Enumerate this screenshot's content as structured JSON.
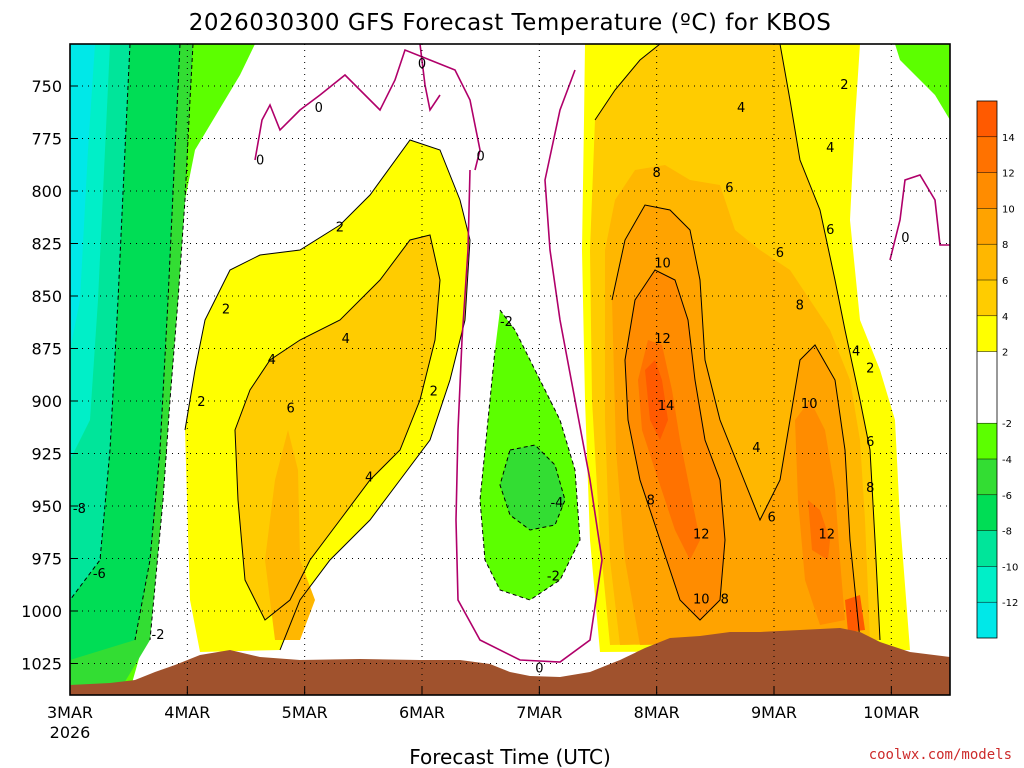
{
  "chart_data": {
    "type": "heatmap",
    "title": "2026030300 GFS Forecast Temperature (ºC) for KBOS",
    "xlabel": "Forecast Time (UTC)",
    "ylabel": "",
    "x_ticks": [
      "3MAR",
      "4MAR",
      "5MAR",
      "6MAR",
      "7MAR",
      "8MAR",
      "9MAR",
      "10MAR"
    ],
    "x_start_year": "2026",
    "y_ticks": [
      "750",
      "775",
      "800",
      "825",
      "850",
      "875",
      "900",
      "925",
      "950",
      "975",
      "1000",
      "1025"
    ],
    "y_units": "hPa",
    "ylim": [
      1040,
      730
    ],
    "xlim_days": [
      0,
      7.5
    ],
    "colorbar": {
      "labels": [
        "14",
        "12",
        "10",
        "8",
        "6",
        "4",
        "2",
        "-2",
        "-4",
        "-6",
        "-8",
        "-10",
        "-12"
      ],
      "bands": [
        {
          "range": [
            14,
            16
          ],
          "color": "#ff5a00"
        },
        {
          "range": [
            12,
            14
          ],
          "color": "#ff7200"
        },
        {
          "range": [
            10,
            12
          ],
          "color": "#ff8c00"
        },
        {
          "range": [
            8,
            10
          ],
          "color": "#ffa300"
        },
        {
          "range": [
            6,
            8
          ],
          "color": "#ffb700"
        },
        {
          "range": [
            4,
            6
          ],
          "color": "#ffcc00"
        },
        {
          "range": [
            2,
            4
          ],
          "color": "#ffff00"
        },
        {
          "range": [
            -2,
            2
          ],
          "color": "#ffffff"
        },
        {
          "range": [
            -4,
            -2
          ],
          "color": "#5cff00"
        },
        {
          "range": [
            -6,
            -4
          ],
          "color": "#33dd33"
        },
        {
          "range": [
            -8,
            -6
          ],
          "color": "#00dd55"
        },
        {
          "range": [
            -10,
            -8
          ],
          "color": "#00e59a"
        },
        {
          "range": [
            -12,
            -10
          ],
          "color": "#00efc8"
        },
        {
          "range": [
            -14,
            -12
          ],
          "color": "#00e8e8"
        }
      ]
    },
    "contour_labels": [
      {
        "text": "-8",
        "day": 0.08,
        "p": 951
      },
      {
        "text": "-6",
        "day": 0.25,
        "p": 982
      },
      {
        "text": "-2",
        "day": 0.75,
        "p": 1011
      },
      {
        "text": "2",
        "day": 1.12,
        "p": 900
      },
      {
        "text": "2",
        "day": 1.33,
        "p": 856
      },
      {
        "text": "4",
        "day": 1.72,
        "p": 880
      },
      {
        "text": "6",
        "day": 1.88,
        "p": 903
      },
      {
        "text": "2",
        "day": 2.3,
        "p": 817
      },
      {
        "text": "4",
        "day": 2.35,
        "p": 870
      },
      {
        "text": "4",
        "day": 2.55,
        "p": 936
      },
      {
        "text": "2",
        "day": 3.1,
        "p": 895
      },
      {
        "text": "0",
        "day": 1.62,
        "p": 785
      },
      {
        "text": "0",
        "day": 2.12,
        "p": 760
      },
      {
        "text": "0",
        "day": 3.0,
        "p": 739
      },
      {
        "text": "0",
        "day": 3.5,
        "p": 783
      },
      {
        "text": "-2",
        "day": 3.72,
        "p": 862
      },
      {
        "text": "-4",
        "day": 4.15,
        "p": 948
      },
      {
        "text": "-2",
        "day": 4.12,
        "p": 983
      },
      {
        "text": "0",
        "day": 4.0,
        "p": 1027
      },
      {
        "text": "8",
        "day": 5.0,
        "p": 791
      },
      {
        "text": "10",
        "day": 5.05,
        "p": 834
      },
      {
        "text": "12",
        "day": 5.05,
        "p": 870
      },
      {
        "text": "14",
        "day": 5.08,
        "p": 902
      },
      {
        "text": "8",
        "day": 4.95,
        "p": 947
      },
      {
        "text": "12",
        "day": 5.38,
        "p": 963
      },
      {
        "text": "10",
        "day": 5.38,
        "p": 994
      },
      {
        "text": "8",
        "day": 5.58,
        "p": 994
      },
      {
        "text": "6",
        "day": 5.62,
        "p": 798
      },
      {
        "text": "4",
        "day": 5.72,
        "p": 760
      },
      {
        "text": "6",
        "day": 6.05,
        "p": 829
      },
      {
        "text": "8",
        "day": 6.22,
        "p": 854
      },
      {
        "text": "4",
        "day": 5.85,
        "p": 922
      },
      {
        "text": "6",
        "day": 5.98,
        "p": 955
      },
      {
        "text": "10",
        "day": 6.3,
        "p": 901
      },
      {
        "text": "12",
        "day": 6.45,
        "p": 963
      },
      {
        "text": "4",
        "day": 6.48,
        "p": 779
      },
      {
        "text": "6",
        "day": 6.48,
        "p": 818
      },
      {
        "text": "4",
        "day": 6.7,
        "p": 876
      },
      {
        "text": "2",
        "day": 6.82,
        "p": 884
      },
      {
        "text": "6",
        "day": 6.82,
        "p": 919
      },
      {
        "text": "8",
        "day": 6.82,
        "p": 941
      },
      {
        "text": "2",
        "day": 6.6,
        "p": 749
      },
      {
        "text": "0",
        "day": 7.12,
        "p": 822
      }
    ]
  },
  "credit": "coolwx.com/models"
}
